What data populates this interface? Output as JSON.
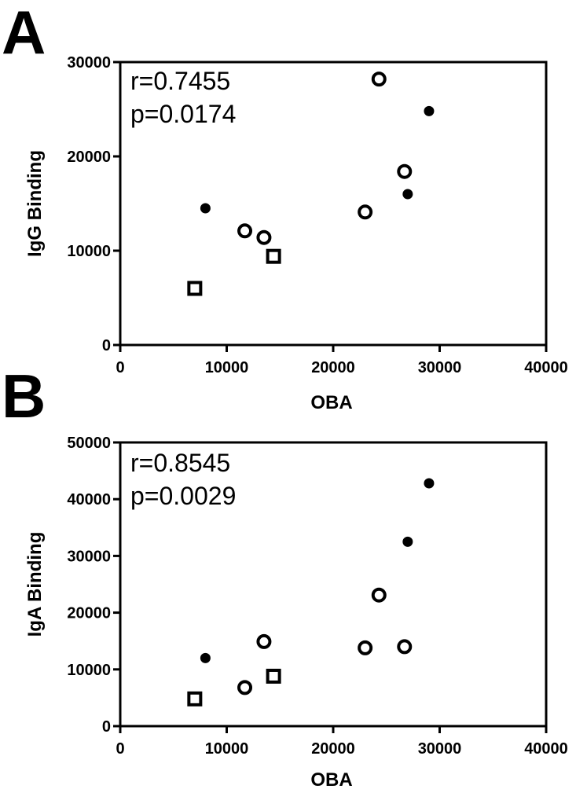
{
  "chart_data": [
    {
      "type": "scatter",
      "panel_label": "A",
      "xlabel": "OBA",
      "ylabel": "IgG Binding",
      "xlim": [
        0,
        40000
      ],
      "ylim": [
        0,
        30000
      ],
      "x_ticks": [
        0,
        10000,
        20000,
        30000,
        40000
      ],
      "y_ticks": [
        0,
        10000,
        20000,
        30000
      ],
      "x_tick_labels": [
        "0",
        "10000",
        "20000",
        "30000",
        "40000"
      ],
      "y_tick_labels": [
        "0",
        "10000",
        "20000",
        "30000"
      ],
      "annotations": [
        "r=0.7455",
        "p=0.0174"
      ],
      "series": [
        {
          "marker": "filled-circle",
          "points": [
            [
              8000,
              14500
            ],
            [
              27000,
              16000
            ],
            [
              29000,
              24800
            ]
          ]
        },
        {
          "marker": "open-circle",
          "points": [
            [
              11700,
              12100
            ],
            [
              13500,
              11400
            ],
            [
              23000,
              14100
            ],
            [
              24300,
              28200
            ],
            [
              26700,
              18400
            ]
          ]
        },
        {
          "marker": "open-square",
          "points": [
            [
              7000,
              6000
            ],
            [
              14400,
              9400
            ]
          ]
        }
      ]
    },
    {
      "type": "scatter",
      "panel_label": "B",
      "xlabel": "OBA",
      "ylabel": "IgA Binding",
      "xlim": [
        0,
        40000
      ],
      "ylim": [
        0,
        50000
      ],
      "x_ticks": [
        0,
        10000,
        20000,
        30000,
        40000
      ],
      "y_ticks": [
        0,
        10000,
        20000,
        30000,
        40000,
        50000
      ],
      "x_tick_labels": [
        "0",
        "10000",
        "20000",
        "30000",
        "40000"
      ],
      "y_tick_labels": [
        "0",
        "10000",
        "20000",
        "30000",
        "40000",
        "50000"
      ],
      "annotations": [
        "r=0.8545",
        "p=0.0029"
      ],
      "series": [
        {
          "marker": "filled-circle",
          "points": [
            [
              8000,
              12000
            ],
            [
              27000,
              32500
            ],
            [
              29000,
              42800
            ]
          ]
        },
        {
          "marker": "open-circle",
          "points": [
            [
              11700,
              6800
            ],
            [
              13500,
              14900
            ],
            [
              23000,
              13800
            ],
            [
              24300,
              23100
            ],
            [
              26700,
              14000
            ]
          ]
        },
        {
          "marker": "open-square",
          "points": [
            [
              7000,
              4800
            ],
            [
              14400,
              8800
            ]
          ]
        }
      ]
    }
  ]
}
